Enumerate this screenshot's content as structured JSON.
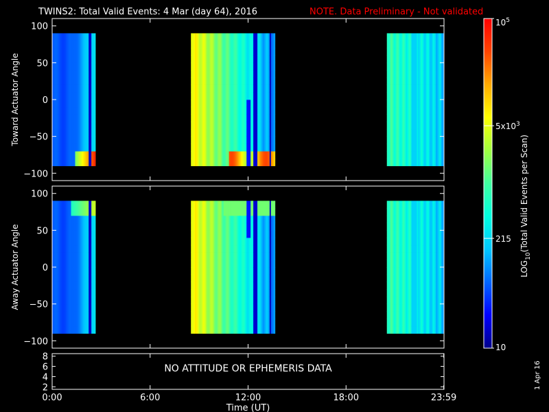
{
  "header": {
    "title": "TWINS2: Total Valid Events:  4 Mar (day  64), 2016",
    "note": "NOTE. Data Preliminary - Not validated",
    "note_color": "#ff0000"
  },
  "chart_data": [
    {
      "type": "heatmap",
      "panel": "top",
      "ylabel": "Toward Actuator Angle",
      "ylim": [
        -110,
        110
      ],
      "yticks": [
        100,
        50,
        0,
        -50,
        -100
      ],
      "ytick_labels": [
        "100",
        "50",
        "0",
        "−50",
        "−100"
      ],
      "y_data_range": [
        -90,
        90
      ],
      "x_unit": "hours UT",
      "xlim": [
        0,
        24
      ],
      "data_blocks": [
        {
          "x_start": 0.0,
          "x_end": 2.65,
          "profile": "early-pass"
        },
        {
          "x_start": 8.5,
          "x_end": 13.65,
          "profile": "midday-pass"
        },
        {
          "x_start": 20.5,
          "x_end": 24.0,
          "profile": "late-pass"
        }
      ]
    },
    {
      "type": "heatmap",
      "panel": "middle",
      "ylabel": "Away Actuator Angle",
      "ylim": [
        -110,
        110
      ],
      "yticks": [
        100,
        50,
        0,
        -50,
        -100
      ],
      "ytick_labels": [
        "100",
        "50",
        "0",
        "−50",
        "−100"
      ],
      "y_data_range": [
        -90,
        90
      ],
      "x_unit": "hours UT",
      "xlim": [
        0,
        24
      ],
      "data_blocks": [
        {
          "x_start": 0.0,
          "x_end": 2.65,
          "profile": "early-pass"
        },
        {
          "x_start": 8.5,
          "x_end": 13.65,
          "profile": "midday-pass"
        },
        {
          "x_start": 20.5,
          "x_end": 24.0,
          "profile": "late-pass"
        }
      ]
    },
    {
      "type": "line",
      "panel": "bottom",
      "ylim": [
        1.5,
        8.5
      ],
      "yticks": [
        8,
        6,
        4,
        2
      ],
      "ytick_labels": [
        "8",
        "6",
        "4",
        "2"
      ],
      "message": "NO ATTITUDE OR EPHEMERIS DATA",
      "xlabel": "Time (UT)",
      "xtick_values": [
        0,
        6,
        12,
        18,
        23.983
      ],
      "xtick_labels": [
        "0:00",
        "6:00",
        "12:00",
        "18:00",
        "23:59"
      ],
      "xlim": [
        0,
        24
      ]
    }
  ],
  "colorbar": {
    "label": "LOG",
    "label_sub": "10",
    "label_rest": "(Total Valid Events per Scan)",
    "scale": "log",
    "range": [
      10,
      100000
    ],
    "ticks": [
      {
        "value": 100000,
        "base": "10",
        "exp": "5"
      },
      {
        "value": 5000,
        "base": "5x10",
        "exp": "3"
      },
      {
        "value": 215,
        "base": "215",
        "exp": ""
      },
      {
        "value": 10,
        "base": "10",
        "exp": ""
      }
    ],
    "colors": [
      "#00008b",
      "#0000ff",
      "#0066ff",
      "#00c8ff",
      "#00ffe0",
      "#40ffa0",
      "#a0ff40",
      "#ffff00",
      "#ffaa00",
      "#ff4400",
      "#ff0000"
    ]
  },
  "footer": {
    "date_stamp": "1 Apr 16"
  }
}
